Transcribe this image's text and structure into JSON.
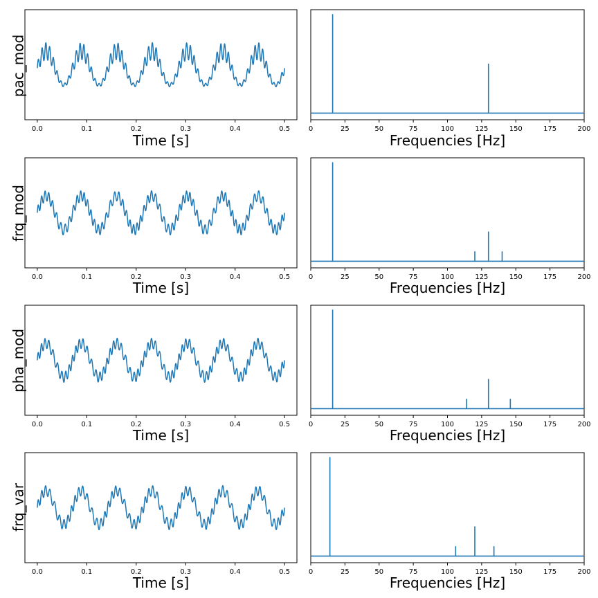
{
  "chart_data": [
    {
      "panel": "pac_mod-time",
      "type": "line",
      "ylabel": "pac_mod",
      "xlabel": "Time [s]",
      "xlim": [
        -0.025,
        0.525
      ],
      "xticks": [
        "0.0",
        "0.1",
        "0.2",
        "0.3",
        "0.4",
        "0.5"
      ],
      "yticks_visible": false,
      "duration_s": 0.5,
      "components": [
        {
          "freq_hz": 14,
          "amplitude": 1.0
        },
        {
          "freq_hz": 130,
          "amplitude": 0.5,
          "modulation": "amplitude-coupled to 14 Hz phase"
        }
      ]
    },
    {
      "panel": "pac_mod-spectrum",
      "type": "line",
      "xlabel": "Frequencies [Hz]",
      "xlim": [
        0,
        200
      ],
      "xticks": [
        "0",
        "25",
        "50",
        "75",
        "100",
        "125",
        "150",
        "175",
        "200"
      ],
      "yticks_visible": false,
      "peaks": [
        {
          "x": 16,
          "y": 1.0
        },
        {
          "x": 130,
          "y": 0.5
        }
      ]
    },
    {
      "panel": "frq_mod-time",
      "type": "line",
      "ylabel": "frq_mod",
      "xlabel": "Time [s]",
      "xlim": [
        -0.025,
        0.525
      ],
      "xticks": [
        "0.0",
        "0.1",
        "0.2",
        "0.3",
        "0.4",
        "0.5"
      ],
      "yticks_visible": false,
      "duration_s": 0.5,
      "components": [
        {
          "freq_hz": 14,
          "amplitude": 1.0
        },
        {
          "freq_hz": 130,
          "amplitude": 0.4,
          "modulation": "frequency-modulated"
        }
      ]
    },
    {
      "panel": "frq_mod-spectrum",
      "type": "line",
      "xlabel": "Frequencies [Hz]",
      "xlim": [
        0,
        200
      ],
      "xticks": [
        "0",
        "25",
        "50",
        "75",
        "100",
        "125",
        "150",
        "175",
        "200"
      ],
      "yticks_visible": false,
      "peaks": [
        {
          "x": 16,
          "y": 1.0
        },
        {
          "x": 120,
          "y": 0.1
        },
        {
          "x": 130,
          "y": 0.3
        },
        {
          "x": 140,
          "y": 0.1
        }
      ]
    },
    {
      "panel": "pha_mod-time",
      "type": "line",
      "ylabel": "pha_mod",
      "xlabel": "Time [s]",
      "xlim": [
        -0.025,
        0.525
      ],
      "xticks": [
        "0.0",
        "0.1",
        "0.2",
        "0.3",
        "0.4",
        "0.5"
      ],
      "yticks_visible": false,
      "duration_s": 0.5,
      "components": [
        {
          "freq_hz": 14,
          "amplitude": 1.0
        },
        {
          "freq_hz": 130,
          "amplitude": 0.4,
          "modulation": "phase-modulated"
        }
      ]
    },
    {
      "panel": "pha_mod-spectrum",
      "type": "line",
      "xlabel": "Frequencies [Hz]",
      "xlim": [
        0,
        200
      ],
      "xticks": [
        "0",
        "25",
        "50",
        "75",
        "100",
        "125",
        "150",
        "175",
        "200"
      ],
      "yticks_visible": false,
      "peaks": [
        {
          "x": 16,
          "y": 1.0
        },
        {
          "x": 114,
          "y": 0.1
        },
        {
          "x": 130,
          "y": 0.3
        },
        {
          "x": 146,
          "y": 0.1
        }
      ]
    },
    {
      "panel": "frq_var-time",
      "type": "line",
      "ylabel": "frq_var",
      "xlabel": "Time [s]",
      "xlim": [
        -0.025,
        0.525
      ],
      "xticks": [
        "0.0",
        "0.1",
        "0.2",
        "0.3",
        "0.4",
        "0.5"
      ],
      "yticks_visible": false,
      "duration_s": 0.5,
      "components": [
        {
          "freq_hz": 14,
          "amplitude": 1.0
        },
        {
          "freq_hz": 120,
          "amplitude": 0.4,
          "modulation": "frequency-variable"
        }
      ]
    },
    {
      "panel": "frq_var-spectrum",
      "type": "line",
      "xlabel": "Frequencies [Hz]",
      "xlim": [
        0,
        200
      ],
      "xticks": [
        "0",
        "25",
        "50",
        "75",
        "100",
        "125",
        "150",
        "175",
        "200"
      ],
      "yticks_visible": false,
      "peaks": [
        {
          "x": 14,
          "y": 1.0
        },
        {
          "x": 106,
          "y": 0.1
        },
        {
          "x": 120,
          "y": 0.3
        },
        {
          "x": 134,
          "y": 0.1
        }
      ]
    }
  ],
  "colors": {
    "line": "#1f77b4",
    "axes": "#000000",
    "background": "#ffffff"
  }
}
